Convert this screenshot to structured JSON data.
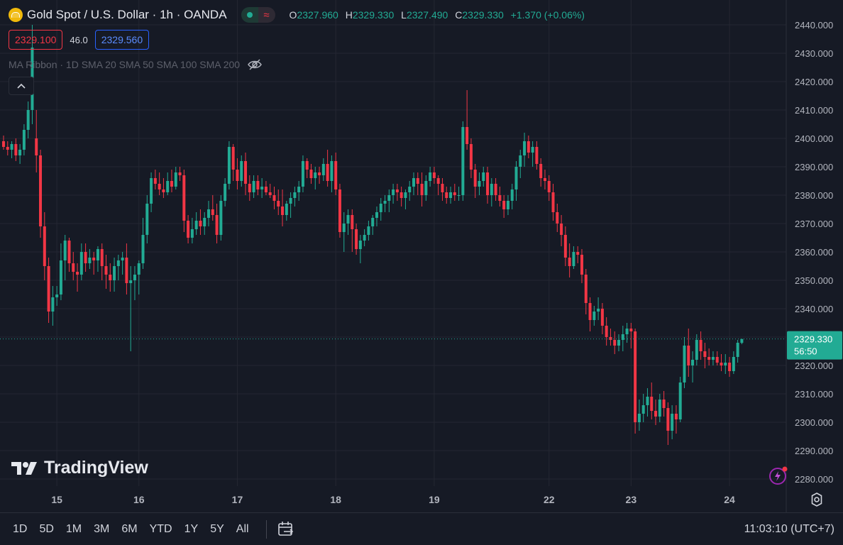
{
  "header": {
    "title": "Gold Spot / U.S. Dollar · 1h · OANDA",
    "ohlc": {
      "o_label": "O",
      "o": "2327.960",
      "h_label": "H",
      "h": "2329.330",
      "l_label": "L",
      "l": "2327.490",
      "c_label": "C",
      "c": "2329.330",
      "change": "+1.370 (+0.06%)"
    }
  },
  "trade": {
    "sell": "2329.100",
    "spread": "46.0",
    "buy": "2329.560"
  },
  "indicator": {
    "label": "MA Ribbon · 1D SMA 20 SMA 50 SMA 100 SMA 200"
  },
  "price_badge": {
    "price": "2329.330",
    "countdown": "56:50"
  },
  "ranges": [
    "1D",
    "5D",
    "1M",
    "3M",
    "6M",
    "YTD",
    "1Y",
    "5Y",
    "All"
  ],
  "clock": "11:03:10 (UTC+7)",
  "logo": "TradingView",
  "colors": {
    "up": "#22ab94",
    "down": "#f23645",
    "bg": "#161a25",
    "grid": "#242732",
    "axis_text": "#b2b5be"
  },
  "chart_data": {
    "type": "candlestick",
    "symbol": "XAUUSD",
    "interval": "1h",
    "ylim": [
      2275,
      2443
    ],
    "y_ticks": [
      2280,
      2290,
      2300,
      2310,
      2320,
      2330,
      2340,
      2350,
      2360,
      2370,
      2380,
      2390,
      2400,
      2410,
      2420,
      2430,
      2440
    ],
    "y_tick_labels": [
      "2280.000",
      "2290.000",
      "2300.000",
      "2310.000",
      "2320.000",
      "2330.000",
      "2340.000",
      "2350.000",
      "2360.000",
      "2370.000",
      "2380.000",
      "2390.000",
      "2400.000",
      "2410.000",
      "2420.000",
      "2430.000",
      "2440.000"
    ],
    "x_labels": [
      "15",
      "16",
      "17",
      "18",
      "19",
      "22",
      "23",
      "24"
    ],
    "x_label_index": [
      13,
      33,
      57,
      81,
      105,
      133,
      153,
      177
    ],
    "last_price": 2329.33,
    "candles": [
      [
        2399,
        2401,
        2396,
        2397
      ],
      [
        2397,
        2399,
        2394,
        2396
      ],
      [
        2396,
        2399,
        2393,
        2398
      ],
      [
        2398,
        2400,
        2392,
        2394
      ],
      [
        2394,
        2398,
        2391,
        2396
      ],
      [
        2396,
        2405,
        2394,
        2403
      ],
      [
        2403,
        2413,
        2400,
        2410
      ],
      [
        2410,
        2440,
        2405,
        2432
      ],
      [
        2400,
        2410,
        2388,
        2394
      ],
      [
        2394,
        2396,
        2365,
        2369
      ],
      [
        2369,
        2374,
        2350,
        2355
      ],
      [
        2355,
        2358,
        2335,
        2339
      ],
      [
        2339,
        2348,
        2334,
        2344
      ],
      [
        2344,
        2348,
        2341,
        2345
      ],
      [
        2345,
        2363,
        2343,
        2357
      ],
      [
        2357,
        2366,
        2350,
        2364
      ],
      [
        2364,
        2365,
        2353,
        2356
      ],
      [
        2356,
        2360,
        2350,
        2353
      ],
      [
        2353,
        2356,
        2346,
        2352
      ],
      [
        2352,
        2363,
        2350,
        2360
      ],
      [
        2360,
        2363,
        2353,
        2356
      ],
      [
        2356,
        2361,
        2354,
        2358
      ],
      [
        2358,
        2360,
        2352,
        2357
      ],
      [
        2357,
        2362,
        2353,
        2361
      ],
      [
        2361,
        2363,
        2350,
        2355
      ],
      [
        2355,
        2359,
        2347,
        2352
      ],
      [
        2352,
        2356,
        2346,
        2350
      ],
      [
        2350,
        2358,
        2346,
        2355
      ],
      [
        2355,
        2359,
        2350,
        2357
      ],
      [
        2357,
        2360,
        2352,
        2358
      ],
      [
        2358,
        2363,
        2345,
        2349
      ],
      [
        2349,
        2355,
        2325,
        2350
      ],
      [
        2350,
        2355,
        2343,
        2352
      ],
      [
        2352,
        2357,
        2345,
        2356
      ],
      [
        2356,
        2372,
        2354,
        2366
      ],
      [
        2366,
        2380,
        2363,
        2377
      ],
      [
        2377,
        2388,
        2374,
        2386
      ],
      [
        2386,
        2389,
        2382,
        2384
      ],
      [
        2384,
        2388,
        2380,
        2382
      ],
      [
        2382,
        2386,
        2379,
        2381
      ],
      [
        2381,
        2388,
        2380,
        2385
      ],
      [
        2385,
        2389,
        2381,
        2383
      ],
      [
        2383,
        2390,
        2382,
        2388
      ],
      [
        2388,
        2390,
        2385,
        2387
      ],
      [
        2387,
        2389,
        2367,
        2371
      ],
      [
        2371,
        2373,
        2363,
        2365
      ],
      [
        2365,
        2372,
        2363,
        2368
      ],
      [
        2368,
        2374,
        2366,
        2371
      ],
      [
        2371,
        2375,
        2366,
        2369
      ],
      [
        2369,
        2374,
        2366,
        2372
      ],
      [
        2372,
        2378,
        2369,
        2375
      ],
      [
        2375,
        2380,
        2371,
        2373
      ],
      [
        2373,
        2377,
        2363,
        2366
      ],
      [
        2366,
        2380,
        2364,
        2378
      ],
      [
        2378,
        2386,
        2376,
        2384
      ],
      [
        2384,
        2399,
        2382,
        2397
      ],
      [
        2397,
        2398,
        2385,
        2389
      ],
      [
        2389,
        2393,
        2382,
        2385
      ],
      [
        2385,
        2394,
        2383,
        2392
      ],
      [
        2392,
        2395,
        2380,
        2384
      ],
      [
        2384,
        2387,
        2378,
        2381
      ],
      [
        2381,
        2387,
        2379,
        2385
      ],
      [
        2385,
        2387,
        2380,
        2382
      ],
      [
        2382,
        2386,
        2379,
        2383
      ],
      [
        2383,
        2385,
        2380,
        2381
      ],
      [
        2381,
        2384,
        2379,
        2380
      ],
      [
        2380,
        2383,
        2375,
        2378
      ],
      [
        2378,
        2382,
        2373,
        2376
      ],
      [
        2376,
        2382,
        2369,
        2373
      ],
      [
        2373,
        2378,
        2371,
        2377
      ],
      [
        2377,
        2381,
        2372,
        2379
      ],
      [
        2379,
        2383,
        2376,
        2381
      ],
      [
        2381,
        2385,
        2378,
        2383
      ],
      [
        2383,
        2394,
        2381,
        2392
      ],
      [
        2392,
        2393,
        2386,
        2389
      ],
      [
        2389,
        2391,
        2384,
        2386
      ],
      [
        2386,
        2390,
        2382,
        2388
      ],
      [
        2388,
        2390,
        2384,
        2387
      ],
      [
        2387,
        2393,
        2385,
        2391
      ],
      [
        2391,
        2396,
        2383,
        2385
      ],
      [
        2385,
        2394,
        2381,
        2392
      ],
      [
        2392,
        2395,
        2380,
        2382
      ],
      [
        2382,
        2384,
        2365,
        2367
      ],
      [
        2367,
        2374,
        2360,
        2370
      ],
      [
        2370,
        2375,
        2366,
        2373
      ],
      [
        2373,
        2375,
        2360,
        2368
      ],
      [
        2368,
        2370,
        2359,
        2361
      ],
      [
        2361,
        2366,
        2356,
        2364
      ],
      [
        2364,
        2368,
        2362,
        2366
      ],
      [
        2366,
        2371,
        2364,
        2369
      ],
      [
        2369,
        2373,
        2366,
        2372
      ],
      [
        2372,
        2376,
        2369,
        2374
      ],
      [
        2374,
        2379,
        2371,
        2377
      ],
      [
        2377,
        2380,
        2374,
        2378
      ],
      [
        2378,
        2382,
        2374,
        2380
      ],
      [
        2380,
        2384,
        2377,
        2382
      ],
      [
        2382,
        2384,
        2378,
        2381
      ],
      [
        2381,
        2383,
        2376,
        2379
      ],
      [
        2379,
        2382,
        2375,
        2381
      ],
      [
        2381,
        2385,
        2378,
        2383
      ],
      [
        2383,
        2388,
        2380,
        2386
      ],
      [
        2386,
        2388,
        2380,
        2384
      ],
      [
        2384,
        2388,
        2376,
        2380
      ],
      [
        2380,
        2387,
        2378,
        2385
      ],
      [
        2385,
        2390,
        2383,
        2388
      ],
      [
        2388,
        2390,
        2384,
        2386
      ],
      [
        2386,
        2387,
        2380,
        2384
      ],
      [
        2384,
        2386,
        2378,
        2381
      ],
      [
        2381,
        2383,
        2377,
        2379
      ],
      [
        2379,
        2383,
        2377,
        2381
      ],
      [
        2381,
        2384,
        2378,
        2380
      ],
      [
        2380,
        2383,
        2378,
        2380
      ],
      [
        2380,
        2406,
        2378,
        2404
      ],
      [
        2404,
        2417,
        2396,
        2398
      ],
      [
        2398,
        2400,
        2386,
        2389
      ],
      [
        2389,
        2391,
        2379,
        2383
      ],
      [
        2383,
        2388,
        2380,
        2385
      ],
      [
        2385,
        2390,
        2383,
        2388
      ],
      [
        2388,
        2390,
        2377,
        2380
      ],
      [
        2380,
        2386,
        2376,
        2384
      ],
      [
        2384,
        2386,
        2378,
        2380
      ],
      [
        2380,
        2383,
        2376,
        2378
      ],
      [
        2378,
        2380,
        2372,
        2375
      ],
      [
        2375,
        2380,
        2373,
        2378
      ],
      [
        2378,
        2384,
        2375,
        2382
      ],
      [
        2382,
        2392,
        2378,
        2390
      ],
      [
        2390,
        2396,
        2386,
        2394
      ],
      [
        2394,
        2402,
        2390,
        2399
      ],
      [
        2399,
        2401,
        2393,
        2395
      ],
      [
        2395,
        2399,
        2390,
        2397
      ],
      [
        2397,
        2399,
        2389,
        2391
      ],
      [
        2391,
        2393,
        2383,
        2386
      ],
      [
        2386,
        2389,
        2382,
        2385
      ],
      [
        2385,
        2387,
        2378,
        2381
      ],
      [
        2381,
        2384,
        2371,
        2374
      ],
      [
        2374,
        2377,
        2367,
        2370
      ],
      [
        2370,
        2373,
        2362,
        2366
      ],
      [
        2366,
        2369,
        2355,
        2358
      ],
      [
        2358,
        2363,
        2351,
        2355
      ],
      [
        2355,
        2362,
        2354,
        2360
      ],
      [
        2360,
        2362,
        2356,
        2359
      ],
      [
        2359,
        2361,
        2349,
        2352
      ],
      [
        2352,
        2354,
        2338,
        2342
      ],
      [
        2342,
        2344,
        2332,
        2336
      ],
      [
        2336,
        2341,
        2334,
        2339
      ],
      [
        2339,
        2344,
        2336,
        2340
      ],
      [
        2340,
        2342,
        2331,
        2334
      ],
      [
        2334,
        2337,
        2327,
        2330
      ],
      [
        2330,
        2333,
        2327,
        2329
      ],
      [
        2329,
        2332,
        2324,
        2327
      ],
      [
        2327,
        2331,
        2325,
        2329
      ],
      [
        2329,
        2334,
        2325,
        2331
      ],
      [
        2331,
        2335,
        2328,
        2333
      ],
      [
        2333,
        2335,
        2326,
        2332
      ],
      [
        2332,
        2333,
        2296,
        2300
      ],
      [
        2300,
        2308,
        2297,
        2303
      ],
      [
        2303,
        2310,
        2300,
        2306
      ],
      [
        2306,
        2312,
        2302,
        2309
      ],
      [
        2309,
        2314,
        2301,
        2304
      ],
      [
        2304,
        2308,
        2299,
        2302
      ],
      [
        2302,
        2310,
        2300,
        2308
      ],
      [
        2308,
        2311,
        2302,
        2305
      ],
      [
        2305,
        2307,
        2292,
        2297
      ],
      [
        2297,
        2306,
        2294,
        2303
      ],
      [
        2303,
        2306,
        2296,
        2301
      ],
      [
        2301,
        2316,
        2300,
        2314
      ],
      [
        2314,
        2330,
        2312,
        2327
      ],
      [
        2327,
        2333,
        2316,
        2320
      ],
      [
        2320,
        2325,
        2314,
        2322
      ],
      [
        2322,
        2331,
        2320,
        2329
      ],
      [
        2329,
        2332,
        2322,
        2325
      ],
      [
        2325,
        2328,
        2319,
        2323
      ],
      [
        2323,
        2326,
        2320,
        2322
      ],
      [
        2322,
        2325,
        2320,
        2323
      ],
      [
        2323,
        2325,
        2320,
        2321
      ],
      [
        2321,
        2324,
        2318,
        2320
      ],
      [
        2320,
        2324,
        2317,
        2321
      ],
      [
        2321,
        2323,
        2316,
        2318
      ],
      [
        2318,
        2325,
        2317,
        2323
      ],
      [
        2323,
        2329,
        2321,
        2328
      ],
      [
        2327.96,
        2329.33,
        2327.49,
        2329.33
      ]
    ]
  }
}
